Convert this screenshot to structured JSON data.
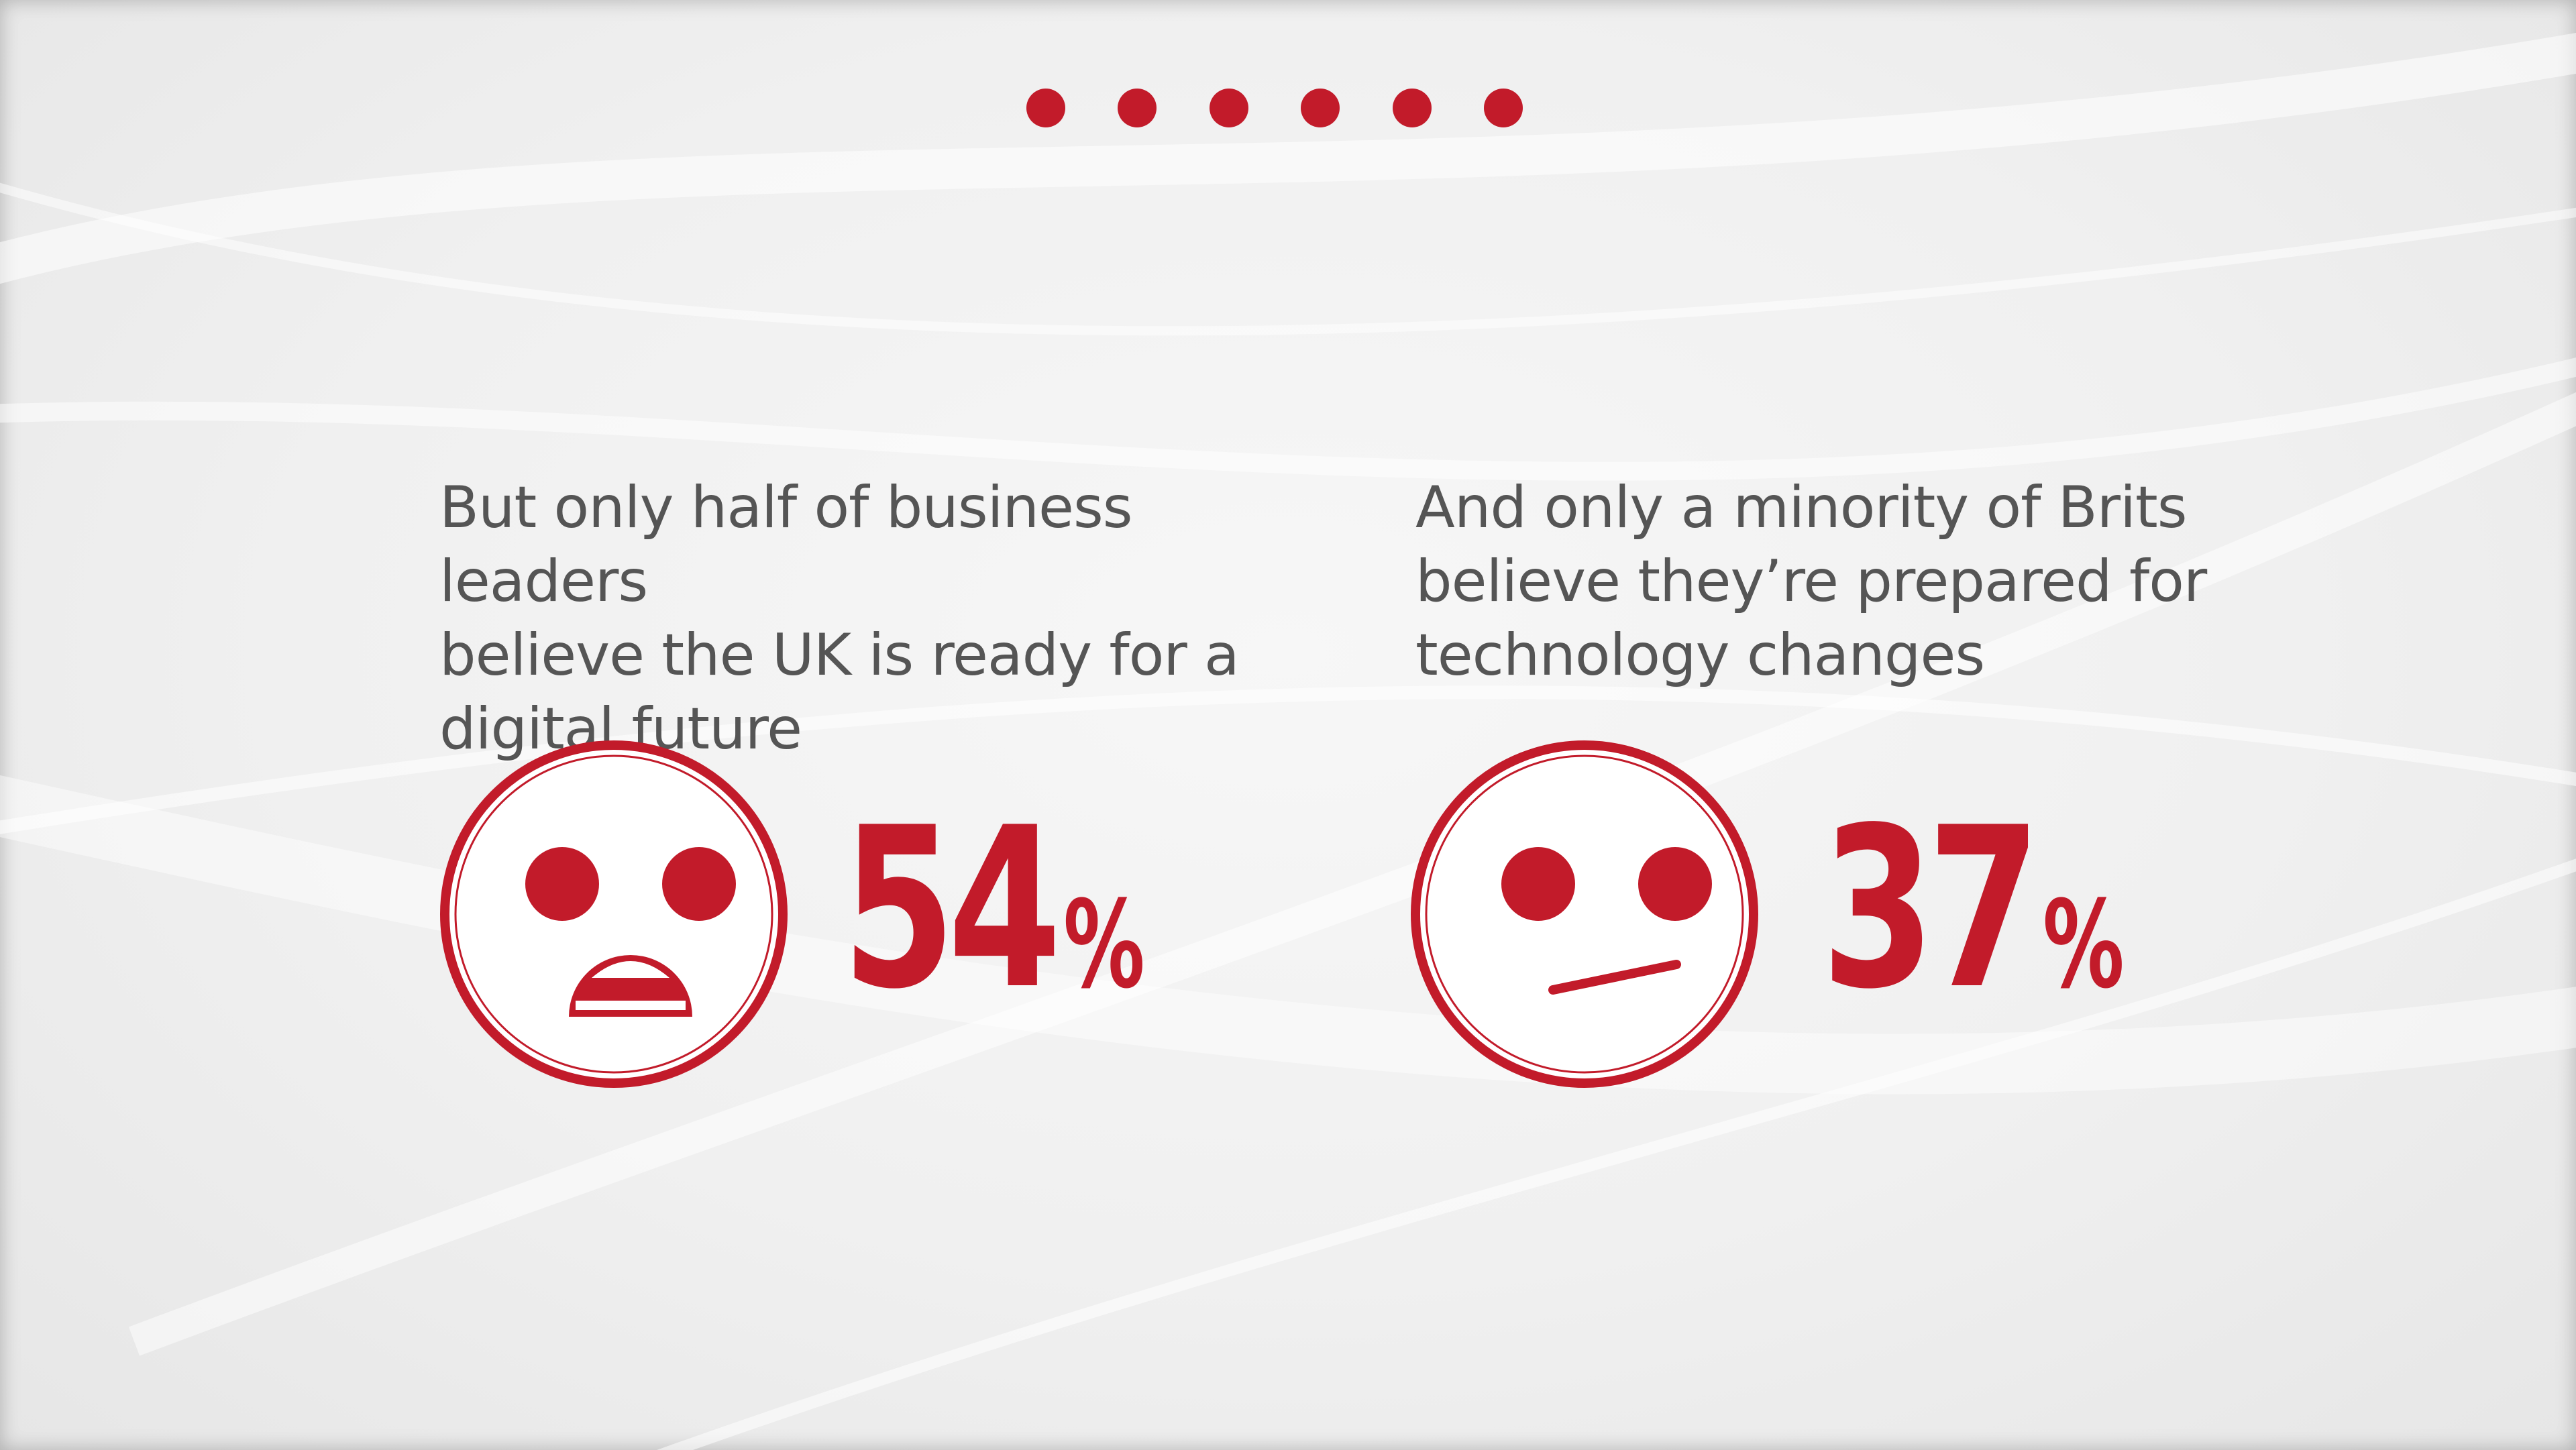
{
  "navigation": {
    "dot_count": 6,
    "dot_color": "#c21b2a"
  },
  "stats": [
    {
      "text": "But only half of business leaders\nbelieve the UK is ready for a\ndigital future",
      "value": "54",
      "unit": "%",
      "face_icon": "surprised-face-icon"
    },
    {
      "text": "And only a minority of Brits\nbelieve they’re prepared for\ntechnology changes",
      "value": "37",
      "unit": "%",
      "face_icon": "skeptical-face-icon"
    }
  ],
  "colors": {
    "accent": "#c21b2a",
    "text": "#555555",
    "background": "#f0f0f0"
  }
}
